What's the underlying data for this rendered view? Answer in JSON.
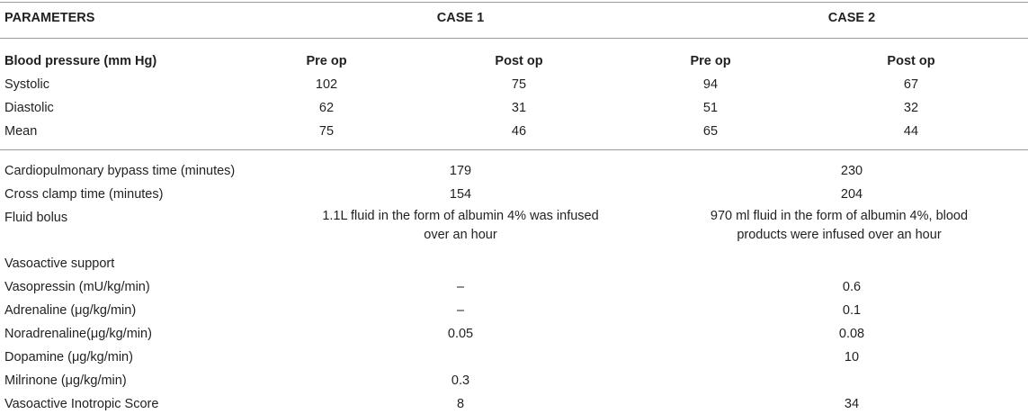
{
  "header": {
    "parameters": "PARAMETERS",
    "case1": "CASE 1",
    "case2": "CASE 2"
  },
  "bp": {
    "label": "Blood pressure (mm Hg)",
    "pre_op": "Pre op",
    "post_op": "Post op",
    "rows": [
      {
        "label": "Systolic",
        "c1_pre": "102",
        "c1_post": "75",
        "c2_pre": "94",
        "c2_post": "67"
      },
      {
        "label": "Diastolic",
        "c1_pre": "62",
        "c1_post": "31",
        "c2_pre": "51",
        "c2_post": "32"
      },
      {
        "label": "Mean",
        "c1_pre": "75",
        "c1_post": "46",
        "c2_pre": "65",
        "c2_post": "44"
      }
    ]
  },
  "other": {
    "rows": [
      {
        "label": "Cardiopulmonary bypass time (minutes)",
        "c1": "179",
        "c2": "230"
      },
      {
        "label": "Cross clamp time (minutes)",
        "c1": "154",
        "c2": "204"
      },
      {
        "label": "Fluid bolus",
        "c1": "1.1L fluid in the form of albumin 4% was infused over an hour",
        "c2": "970 ml fluid in the form of albumin 4%, blood products were infused over an hour"
      },
      {
        "label": "Vasoactive support",
        "c1": "",
        "c2": ""
      },
      {
        "label": "Vasopressin (mU/kg/min)",
        "c1": "–",
        "c2": "0.6"
      },
      {
        "label": "Adrenaline (μg/kg/min)",
        "c1": "–",
        "c2": "0.1"
      },
      {
        "label": "Noradrenaline(μg/kg/min)",
        "c1": "0.05",
        "c2": "0.08"
      },
      {
        "label": "Dopamine (μg/kg/min)",
        "c1": "",
        "c2": "10"
      },
      {
        "label": "Milrinone (μg/kg/min)",
        "c1": "0.3",
        "c2": ""
      },
      {
        "label": "Vasoactive Inotropic Score",
        "c1": "8",
        "c2": "34"
      }
    ]
  }
}
